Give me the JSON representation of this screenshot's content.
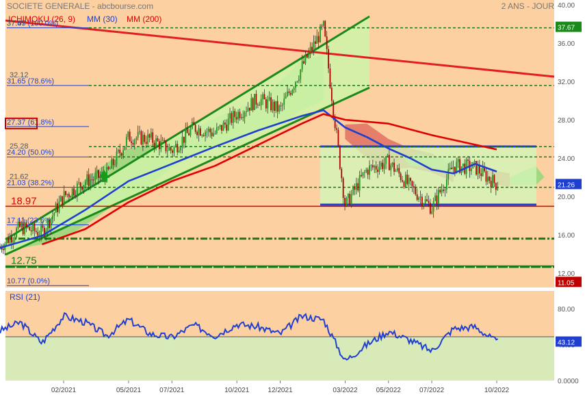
{
  "header": {
    "title": "SOCIETE GENERALE - abcbourse.com",
    "period": "2 ANS - JOUR"
  },
  "legend": [
    {
      "label": "ICHIMOKU (26, 9)",
      "color": "#e00000"
    },
    {
      "label": "MM (30)",
      "color": "#1f3fd0"
    },
    {
      "label": "MM (200)",
      "color": "#e00000"
    }
  ],
  "colors": {
    "price_bg_warm": "#fcd0a0",
    "price_bg_cool": "#dff0c0",
    "rsi_bg_warm": "#fcd0a0",
    "rsi_bg_cool": "#d8eab8",
    "candle_up": "#1a9a1a",
    "candle_down": "#b00000",
    "mm30": "#1f3fd0",
    "mm200": "#e00000",
    "trend_green": "#1a8a1a",
    "trend_red": "#e02020",
    "kumo_green": "#8fd87a",
    "kumo_red": "#e07060",
    "fib": "#1f3fd0",
    "support_green": "#1a7a1a",
    "support_red": "#e00000",
    "last_price_bg": "#1a8a1a",
    "min_bg": "#c00000"
  },
  "chart_data": [
    {
      "type": "candlestick",
      "title": "SOCIETE GENERALE - abcbourse.com",
      "subtitle": "2 ANS - JOUR",
      "x_ticks": [
        "02/2021",
        "05/2021",
        "07/2021",
        "10/2021",
        "12/2021",
        "03/2022",
        "05/2022",
        "07/2022",
        "10/2022"
      ],
      "y_ticks": [
        12.0,
        16.0,
        20.0,
        24.0,
        28.0,
        32.0,
        36.0,
        40.0
      ],
      "ylim": [
        10.5,
        40.5
      ],
      "last_price": 21.26,
      "min_value": 11.05,
      "max_value": 37.67,
      "price_points": [
        [
          "11/2020",
          14.6
        ],
        [
          "12/2020",
          16.8
        ],
        [
          "01/2021",
          16.2
        ],
        [
          "02/2021",
          20.0
        ],
        [
          "03/2021",
          21.6
        ],
        [
          "04/2021",
          22.3
        ],
        [
          "05/2021",
          26.2
        ],
        [
          "06/2021",
          26.0
        ],
        [
          "07/2021",
          24.8
        ],
        [
          "08/2021",
          27.2
        ],
        [
          "09/2021",
          26.6
        ],
        [
          "10/2021",
          28.6
        ],
        [
          "11/2021",
          30.2
        ],
        [
          "12/2021",
          29.0
        ],
        [
          "01/2022",
          33.5
        ],
        [
          "02/2022",
          37.67
        ],
        [
          "03/2022",
          19.0
        ],
        [
          "04/2022",
          22.8
        ],
        [
          "05/2022",
          23.6
        ],
        [
          "06/2022",
          21.0
        ],
        [
          "07/2022",
          18.8
        ],
        [
          "08/2022",
          23.2
        ],
        [
          "09/2022",
          23.0
        ],
        [
          "10/2022",
          21.26
        ]
      ],
      "moving_averages": [
        {
          "name": "MM (30)",
          "points": [
            [
              "11/2020",
              14.6
            ],
            [
              "01/2021",
              15.9
            ],
            [
              "03/2021",
              18.6
            ],
            [
              "05/2021",
              21.6
            ],
            [
              "07/2021",
              23.4
            ],
            [
              "09/2021",
              25.2
            ],
            [
              "11/2021",
              26.9
            ],
            [
              "01/2022",
              28.4
            ],
            [
              "02/2022",
              29.0
            ],
            [
              "03/2022",
              27.2
            ],
            [
              "04/2022",
              26.2
            ],
            [
              "05/2022",
              25.0
            ],
            [
              "06/2022",
              24.0
            ],
            [
              "07/2022",
              22.8
            ],
            [
              "08/2022",
              22.4
            ],
            [
              "09/2022",
              23.4
            ],
            [
              "10/2022",
              22.6
            ]
          ]
        },
        {
          "name": "MM (200)",
          "points": [
            [
              "01/2021",
              15.0
            ],
            [
              "03/2021",
              16.6
            ],
            [
              "05/2021",
              19.4
            ],
            [
              "07/2021",
              21.6
            ],
            [
              "09/2021",
              23.2
            ],
            [
              "11/2021",
              25.4
            ],
            [
              "01/2022",
              27.6
            ],
            [
              "02/2022",
              28.6
            ],
            [
              "03/2022",
              28.0
            ],
            [
              "05/2022",
              27.6
            ],
            [
              "07/2022",
              26.4
            ],
            [
              "09/2022",
              25.4
            ],
            [
              "10/2022",
              24.9
            ]
          ]
        }
      ],
      "fibonacci": [
        {
          "label": "37.67 (100.0%)",
          "value": 37.67,
          "price_label": "37.45"
        },
        {
          "label": "31.65 (78.6%)",
          "value": 31.65,
          "price_label": "32.12"
        },
        {
          "label": "27.37 (61.8%)",
          "value": 27.37,
          "price_label": ""
        },
        {
          "label": "24.20 (50.0%)",
          "value": 24.2,
          "price_label": "25.28"
        },
        {
          "label": "21.03 (38.2%)",
          "value": 21.03,
          "price_label": "21.62"
        },
        {
          "label": "17.11 (23.6%)",
          "value": 17.11,
          "price_label": ""
        },
        {
          "label": "10.77 (0.0%)",
          "value": 10.77,
          "price_label": ""
        }
      ],
      "horizontal_levels": [
        {
          "label": "18.97",
          "value": 18.97,
          "color": "#e00000"
        },
        {
          "label": "12.75",
          "value": 12.75,
          "color": "#1a7a1a"
        }
      ]
    },
    {
      "type": "line",
      "title": "RSI (21)",
      "y_ticks": [
        0.0,
        40.0,
        80.0
      ],
      "ylim": [
        0,
        100
      ],
      "last_value": 43.12,
      "points": [
        [
          "11/2020",
          55
        ],
        [
          "12/2020",
          65
        ],
        [
          "01/2021",
          42
        ],
        [
          "02/2021",
          72
        ],
        [
          "03/2021",
          65
        ],
        [
          "04/2021",
          50
        ],
        [
          "05/2021",
          68
        ],
        [
          "06/2021",
          52
        ],
        [
          "07/2021",
          48
        ],
        [
          "08/2021",
          62
        ],
        [
          "09/2021",
          50
        ],
        [
          "10/2021",
          63
        ],
        [
          "11/2021",
          60
        ],
        [
          "12/2021",
          52
        ],
        [
          "01/2022",
          72
        ],
        [
          "02/2022",
          68
        ],
        [
          "03/2022",
          22
        ],
        [
          "04/2022",
          40
        ],
        [
          "05/2022",
          55
        ],
        [
          "06/2022",
          45
        ],
        [
          "07/2022",
          33
        ],
        [
          "08/2022",
          58
        ],
        [
          "09/2022",
          60
        ],
        [
          "10/2022",
          43.12
        ]
      ]
    }
  ]
}
